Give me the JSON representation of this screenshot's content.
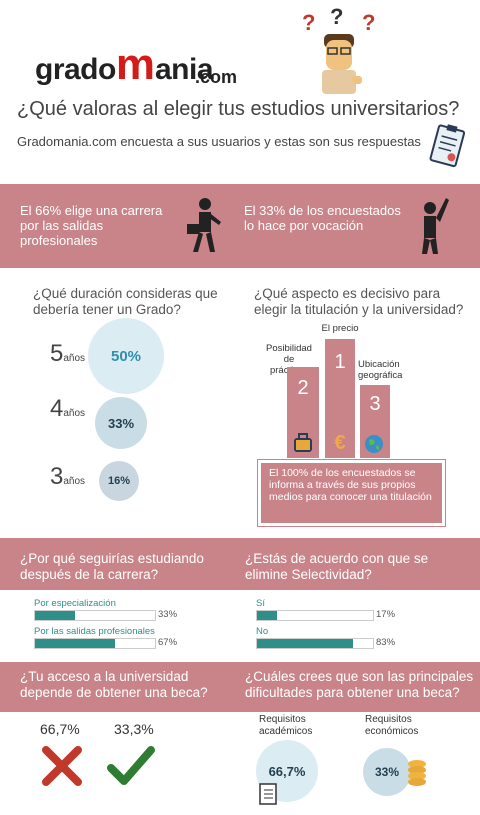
{
  "logo": {
    "grado": "grado",
    "m": "m",
    "ania": "ania",
    "dotcom": ".com"
  },
  "header": {
    "title": "¿Qué valoras al elegir tus estudios universitarios?",
    "subtitle": "Gradomania.com encuesta a sus usuarios y estas son sus respuestas"
  },
  "band1": {
    "left": "El 66% elige una carrera por las salidas profesionales",
    "right": "El 33% de los encuestados lo hace por vocación"
  },
  "duration": {
    "question": "¿Qué duración consideras que debería tener un Grado?",
    "unit": "años",
    "items": [
      {
        "years": "5",
        "pct": "50%"
      },
      {
        "years": "4",
        "pct": "33%"
      },
      {
        "years": "3",
        "pct": "16%"
      }
    ]
  },
  "aspect": {
    "question": "¿Qué aspecto es decisivo para elegir la titulación y la universidad?",
    "first": {
      "rank": "1",
      "label": "El precio"
    },
    "second": {
      "rank": "2",
      "label": "Posibilidad de prácticas"
    },
    "third": {
      "rank": "3",
      "label": "Ubicación geográfica"
    },
    "euro": "€",
    "note": "El 100% de los encuestados se informa a través de sus propios medios para conocer una titulación"
  },
  "continue": {
    "question": "¿Por qué seguirías estudiando después de la carrera?"
  },
  "selectividad": {
    "question": "¿Estás de acuerdo con que se elimine Selectividad?"
  },
  "beca": {
    "question": "¿Tu acceso a la universidad depende de obtener una beca?",
    "no_pct": "66,7%",
    "yes_pct": "33,3%"
  },
  "difficulty": {
    "question": "¿Cuáles crees que son las principales dificultades para obtener una beca?",
    "academic_label": "Requisitos académicos",
    "academic_pct": "66,7%",
    "economic_label": "Requisitos económicos",
    "economic_pct": "33%"
  },
  "colors": {
    "band": "#c9848a",
    "teal": "#2e8f8a",
    "lightblue": "#dcecf3",
    "red": "#c0392b",
    "green": "#2e7d32"
  },
  "chart_data": [
    {
      "type": "bar",
      "title": "¿Por qué seguirías estudiando después de la carrera?",
      "categories": [
        "Por especialización",
        "Por las salidas profesionales"
      ],
      "values": [
        33,
        67
      ],
      "value_labels": [
        "33%",
        "67%"
      ],
      "ylim": [
        0,
        100
      ]
    },
    {
      "type": "bar",
      "title": "¿Estás de acuerdo con que se elimine Selectividad?",
      "categories": [
        "Sí",
        "No"
      ],
      "values": [
        17,
        83
      ],
      "value_labels": [
        "17%",
        "83%"
      ],
      "ylim": [
        0,
        100
      ]
    }
  ]
}
